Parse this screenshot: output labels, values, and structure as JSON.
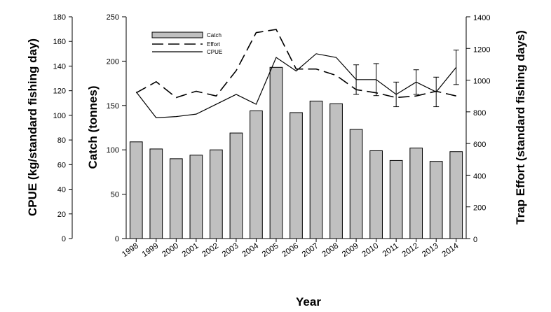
{
  "chart_data": {
    "type": "bar",
    "categories": [
      "1998",
      "1999",
      "2000",
      "2001",
      "2002",
      "2003",
      "2004",
      "2005",
      "2006",
      "2007",
      "2008",
      "2009",
      "2010",
      "2011",
      "2012",
      "2013",
      "2014"
    ],
    "xlabel": "Year",
    "y_left_outer": {
      "label": "CPUE (kg/standard fishing day)",
      "range": [
        0,
        180
      ],
      "ticks": [
        "0",
        "20",
        "40",
        "60",
        "80",
        "100",
        "120",
        "140",
        "160",
        "180"
      ]
    },
    "y_left": {
      "label": "Catch (tonnes)",
      "range": [
        0,
        250
      ],
      "ticks": [
        "0",
        "50",
        "100",
        "150",
        "200",
        "250"
      ]
    },
    "y_right": {
      "label": "Trap Effort (standard fishing days)",
      "range": [
        0,
        1400
      ],
      "ticks": [
        "0",
        "200",
        "400",
        "600",
        "800",
        "1000",
        "1200",
        "1400"
      ]
    },
    "legend": {
      "placement": "top-left",
      "items": [
        "Catch",
        "Effort",
        "CPUE"
      ]
    },
    "series": [
      {
        "name": "Catch",
        "kind": "bar",
        "axis": "catch",
        "values": [
          109,
          101,
          90,
          94,
          100,
          119,
          144,
          193,
          142,
          155,
          152,
          123,
          99,
          88,
          102,
          87,
          98
        ]
      },
      {
        "name": "Effort",
        "kind": "dashed-line",
        "axis": "effort",
        "values": [
          920,
          990,
          890,
          930,
          900,
          1060,
          1300,
          1320,
          1070,
          1070,
          1030,
          940,
          920,
          890,
          900,
          930,
          900
        ]
      },
      {
        "name": "CPUE",
        "kind": "solid-line",
        "axis": "cpue",
        "values": [
          119,
          98,
          99,
          101,
          109,
          117,
          109,
          147,
          136,
          150,
          147,
          129,
          129,
          117,
          127,
          119,
          139
        ],
        "error_from": 2009,
        "errors": [
          12,
          13,
          10,
          10,
          12,
          14
        ]
      }
    ]
  }
}
